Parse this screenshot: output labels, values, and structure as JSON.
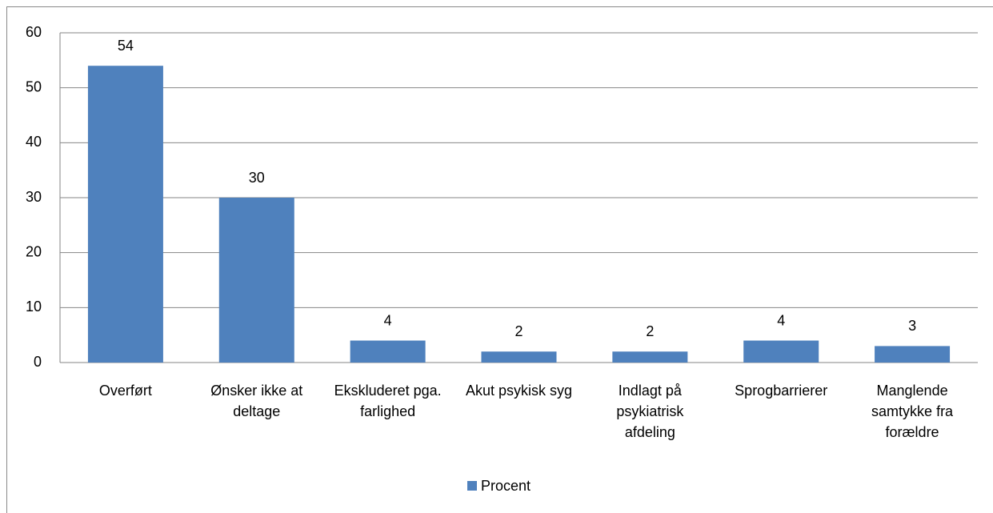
{
  "chart_data": {
    "type": "bar",
    "categories": [
      "Overført",
      "Ønsker ikke at deltage",
      "Ekskluderet pga. farlighed",
      "Akut psykisk syg",
      "Indlagt på psykiatrisk afdeling",
      "Sprogbarrierer",
      "Manglende samtykke fra forældre"
    ],
    "series": [
      {
        "name": "Procent",
        "color": "#4f81bd",
        "values": [
          54,
          30,
          4,
          2,
          2,
          4,
          3
        ]
      }
    ],
    "ylim": [
      0,
      60
    ],
    "yticks": [
      0,
      10,
      20,
      30,
      40,
      50,
      60
    ],
    "grid": true,
    "legend": "bottom"
  }
}
